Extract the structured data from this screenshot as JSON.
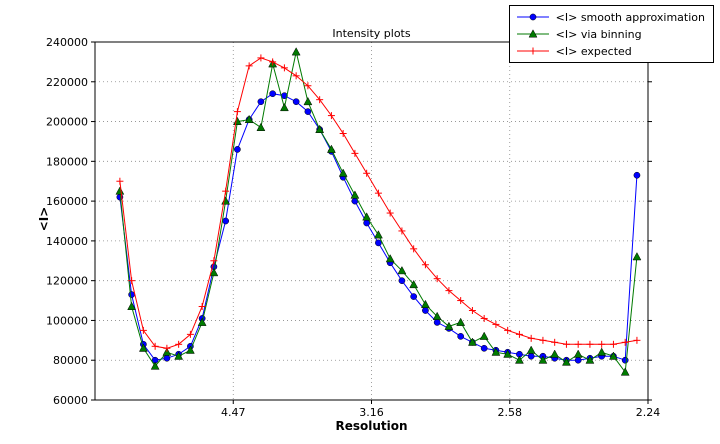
{
  "figure": {
    "title": "Intensity plots",
    "xlabel": "Resolution",
    "ylabel": "<I>"
  },
  "chart_data": {
    "type": "line",
    "title": "Intensity plots",
    "xlabel": "Resolution",
    "ylabel": "<I>",
    "xlim": [
      0,
      0.2
    ],
    "ylim": [
      60000,
      240000
    ],
    "grid": true,
    "grid_style": "dotted",
    "legend_position": "upper right",
    "x_axis_note": "x coordinate is 1/d^2; tick labels give resolution d in Angstrom",
    "x_ticks": [
      {
        "value": 0.05,
        "label": "4.47"
      },
      {
        "value": 0.1,
        "label": "3.16"
      },
      {
        "value": 0.15,
        "label": "2.58"
      },
      {
        "value": 0.2,
        "label": "2.24"
      }
    ],
    "y_ticks": [
      60000,
      80000,
      100000,
      120000,
      140000,
      160000,
      180000,
      200000,
      220000,
      240000
    ],
    "x": [
      0.009,
      0.01325,
      0.0175,
      0.02175,
      0.026,
      0.03025,
      0.0345,
      0.03875,
      0.043,
      0.04725,
      0.0515,
      0.05575,
      0.06,
      0.06425,
      0.0685,
      0.07275,
      0.077,
      0.08125,
      0.0855,
      0.08975,
      0.094,
      0.09825,
      0.1025,
      0.10675,
      0.111,
      0.11525,
      0.1195,
      0.12375,
      0.128,
      0.13225,
      0.1365,
      0.14075,
      0.145,
      0.14925,
      0.1535,
      0.15775,
      0.162,
      0.16625,
      0.1705,
      0.17475,
      0.179,
      0.18325,
      0.1875,
      0.19175,
      0.196
    ],
    "series": [
      {
        "name": "<I> smooth approximation",
        "color": "#0000ff",
        "marker": "circle",
        "values": [
          162000,
          113000,
          88000,
          80000,
          81000,
          83000,
          87000,
          101000,
          127000,
          150000,
          186000,
          201000,
          210000,
          214000,
          213000,
          210000,
          205000,
          196000,
          185000,
          172000,
          160000,
          149000,
          139000,
          129000,
          120000,
          112000,
          105000,
          99000,
          96000,
          92000,
          89000,
          86000,
          85000,
          84000,
          83000,
          82000,
          82000,
          81000,
          80000,
          80000,
          81000,
          82000,
          82000,
          80000,
          173000
        ]
      },
      {
        "name": "<I> via binning",
        "color": "#007a00",
        "marker": "triangle",
        "values": [
          165000,
          107000,
          86000,
          77000,
          84000,
          82000,
          85000,
          99000,
          124000,
          160000,
          200000,
          201000,
          197000,
          229000,
          207000,
          235000,
          210000,
          196000,
          186000,
          174000,
          163000,
          152000,
          143000,
          131000,
          125000,
          118000,
          108000,
          102000,
          97000,
          99000,
          89000,
          92000,
          84000,
          83000,
          80000,
          85000,
          80000,
          83000,
          79000,
          83000,
          80000,
          84000,
          82000,
          74000,
          132000
        ]
      },
      {
        "name": "<I> expected",
        "color": "#ff0000",
        "marker": "plus",
        "values": [
          170000,
          120000,
          95000,
          87000,
          86000,
          88000,
          93000,
          107000,
          130000,
          165000,
          205000,
          228000,
          232000,
          230000,
          227000,
          223000,
          218000,
          211000,
          203000,
          194000,
          184000,
          174000,
          164000,
          154000,
          145000,
          136000,
          128000,
          121000,
          115000,
          110000,
          105000,
          101000,
          98000,
          95000,
          93000,
          91000,
          90000,
          89000,
          88000,
          88000,
          88000,
          88000,
          88000,
          89000,
          90000
        ]
      }
    ]
  }
}
